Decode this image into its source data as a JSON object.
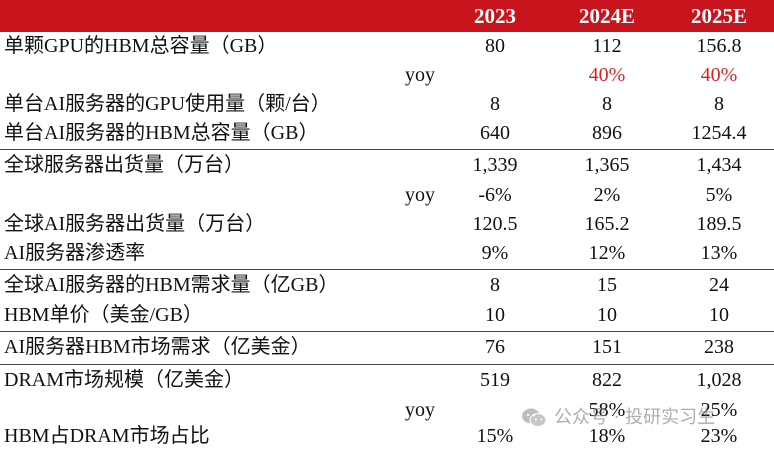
{
  "header": {
    "years": [
      "2023",
      "2024E",
      "2025E"
    ],
    "bg_color": "#c8151d",
    "text_color": "#ffffff"
  },
  "rows": [
    {
      "label": "单颗GPU的HBM总容量（GB）",
      "v": [
        "80",
        "112",
        "156.8"
      ]
    },
    {
      "label": "yoy",
      "v": [
        "",
        "40%",
        "40%"
      ],
      "red": true
    },
    {
      "label": "单台AI服务器的GPU使用量（颗/台）",
      "v": [
        "8",
        "8",
        "8"
      ]
    },
    {
      "label": "单台AI服务器的HBM总容量（GB）",
      "v": [
        "640",
        "896",
        "1254.4"
      ]
    },
    {
      "label": "全球服务器出货量（万台）",
      "v": [
        "1,339",
        "1,365",
        "1,434"
      ]
    },
    {
      "label": "yoy",
      "v": [
        "-6%",
        "2%",
        "5%"
      ]
    },
    {
      "label": "全球AI服务器出货量（万台）",
      "v": [
        "120.5",
        "165.2",
        "189.5"
      ]
    },
    {
      "label": "AI服务器渗透率",
      "v": [
        "9%",
        "12%",
        "13%"
      ]
    },
    {
      "label": "全球AI服务器的HBM需求量（亿GB）",
      "v": [
        "8",
        "15",
        "24"
      ]
    },
    {
      "label": "HBM单价（美金/GB）",
      "v": [
        "10",
        "10",
        "10"
      ]
    },
    {
      "label": "AI服务器HBM市场需求（亿美金）",
      "v": [
        "76",
        "151",
        "238"
      ]
    },
    {
      "label": "DRAM市场规模（亿美金）",
      "v": [
        "519",
        "822",
        "1,028"
      ]
    },
    {
      "label": "yoy",
      "v": [
        "",
        "58%",
        "25%"
      ]
    },
    {
      "label": "HBM占DRAM市场占比",
      "v": [
        "15%",
        "18%",
        "23%"
      ]
    }
  ],
  "watermark": {
    "text": "公众号 · 投研实习生",
    "icon": "wechat-icon"
  },
  "colors": {
    "accent_red": "#c8151d",
    "value_red": "#d8232a"
  }
}
